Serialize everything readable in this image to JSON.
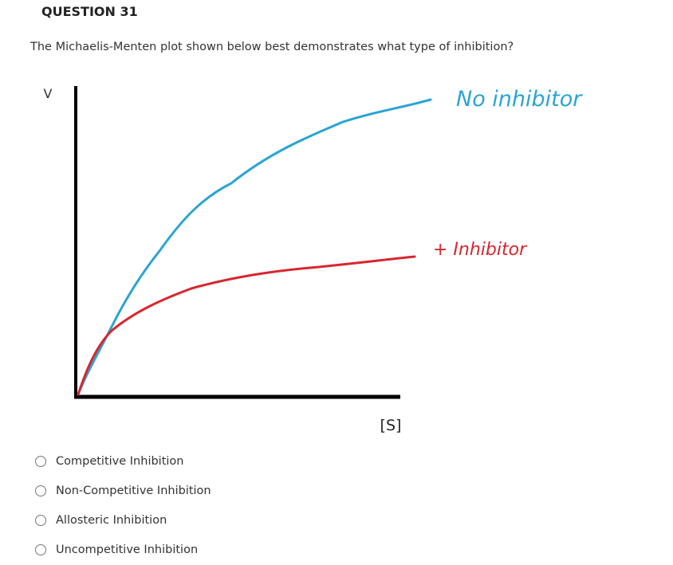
{
  "header": {
    "title": "QUESTION 31"
  },
  "question": {
    "text": "The Michaelis-Menten plot shown below best demonstrates what type of inhibition?"
  },
  "figure": {
    "y_label": "V",
    "x_label": "[S]",
    "curve_labels": [
      "No inhibitor",
      "+ Inhibitor"
    ]
  },
  "options": [
    "Competitive Inhibition",
    "Non-Competitive Inhibition",
    "Allosteric Inhibition",
    "Uncompetitive Inhibition"
  ]
}
